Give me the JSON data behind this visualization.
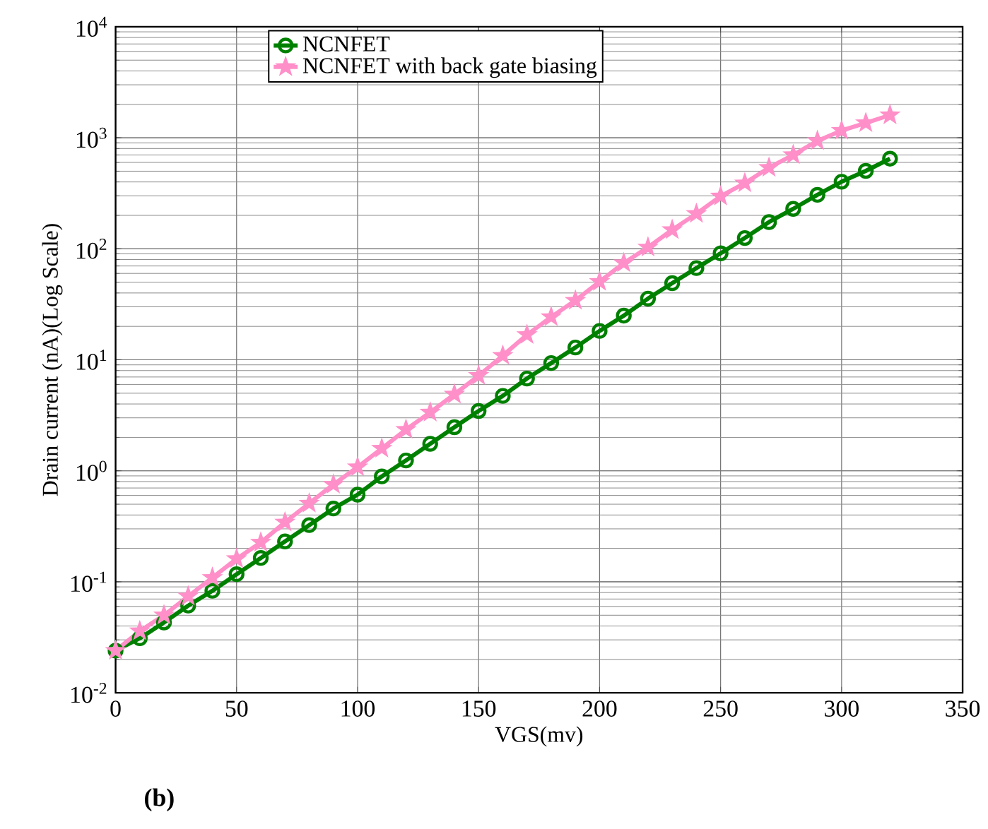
{
  "chart_data": {
    "type": "line",
    "xlabel": "VGS(mv)",
    "ylabel": "Drain current (nA)(Log Scale)",
    "annotations": [
      "(b)"
    ],
    "x": [
      0,
      10,
      20,
      30,
      40,
      50,
      60,
      70,
      80,
      90,
      100,
      110,
      120,
      130,
      140,
      150,
      160,
      170,
      180,
      190,
      200,
      210,
      220,
      230,
      240,
      250,
      260,
      270,
      280,
      290,
      300,
      310,
      320
    ],
    "series": [
      {
        "name": "NCNFET",
        "color": "#008000",
        "marker": "circle",
        "values": [
          0.024,
          0.031,
          0.043,
          0.061,
          0.083,
          0.117,
          0.164,
          0.231,
          0.324,
          0.457,
          0.61,
          0.89,
          1.24,
          1.75,
          2.47,
          3.46,
          4.73,
          6.78,
          9.35,
          12.9,
          18.2,
          25,
          35.6,
          49,
          67,
          91,
          125,
          174,
          229,
          306,
          402,
          503,
          648
        ]
      },
      {
        "name": "NCNFET with back gate biasing",
        "color": "#ff8fc8",
        "marker": "star",
        "values": [
          0.024,
          0.036,
          0.05,
          0.074,
          0.109,
          0.161,
          0.226,
          0.344,
          0.509,
          0.752,
          1.08,
          1.59,
          2.35,
          3.36,
          4.88,
          7.19,
          10.9,
          16.8,
          24.3,
          34.2,
          50.5,
          74.5,
          103,
          148,
          207,
          297,
          390,
          538,
          700,
          938,
          1160,
          1360,
          1600
        ]
      }
    ],
    "xlim": [
      0,
      350
    ],
    "ylim": [
      0.01,
      10000
    ],
    "log": "y",
    "xticks": [
      0,
      50,
      100,
      150,
      200,
      250,
      300,
      350
    ],
    "yticks": [
      {
        "value": 0.01,
        "label": "10$^{-2}$"
      },
      {
        "value": 0.1,
        "label": "10$^{-1}$"
      },
      {
        "value": 1,
        "label": "10$^{0}$"
      },
      {
        "value": 10,
        "label": "10$^{1}$"
      },
      {
        "value": 100,
        "label": "10$^{2}$"
      },
      {
        "value": 1000,
        "label": "10$^{3}$"
      },
      {
        "value": 10000,
        "label": "10$^{4}$"
      }
    ],
    "grid": true,
    "legend": "top",
    "line_style": "solid"
  }
}
